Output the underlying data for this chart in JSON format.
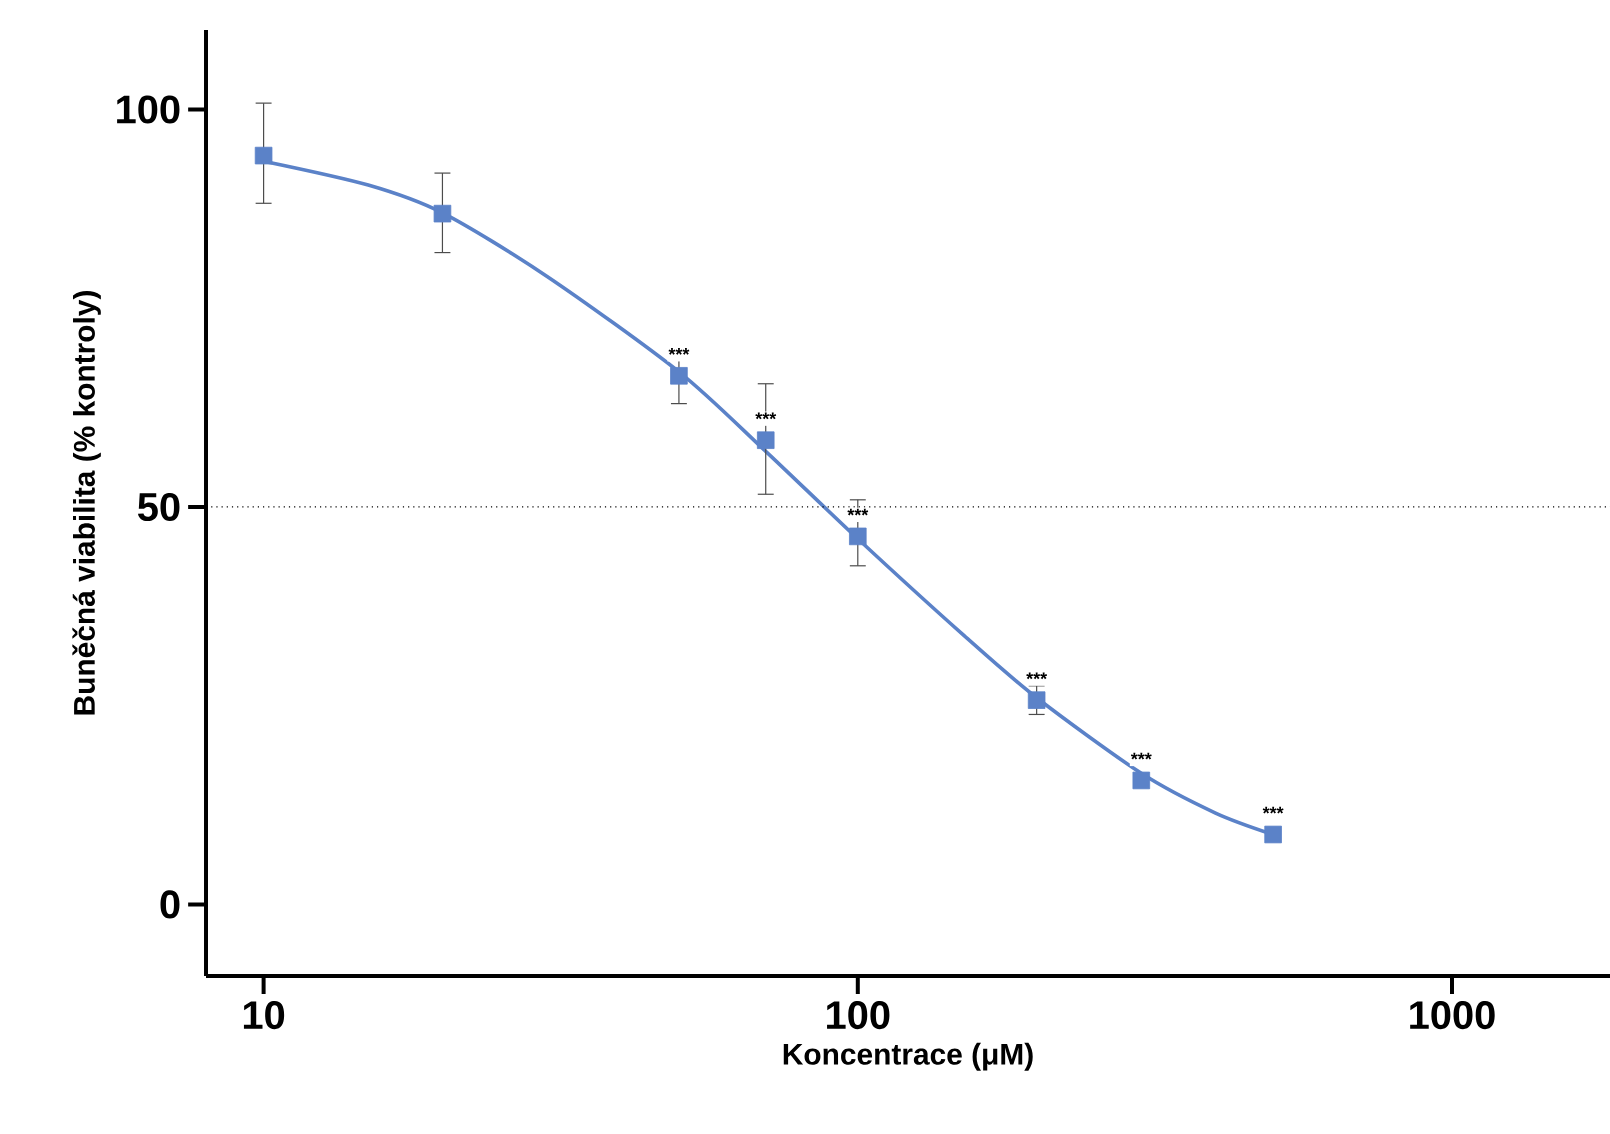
{
  "chart_data": {
    "type": "scatter",
    "xlabel": "Koncentrace (μM)",
    "ylabel": "Buněčná viabilita  (% kontroly)",
    "log": "x",
    "xlim": [
      8,
      1845
    ],
    "xticks": [
      10,
      100,
      1000
    ],
    "ylim": [
      -9,
      110
    ],
    "yticks": [
      0,
      50,
      100
    ],
    "marker": "square",
    "line_style": "solid",
    "grid": false,
    "series": [
      {
        "type": "line",
        "marker": "none",
        "color": "#5b82c8",
        "x": [
          10,
          15,
          20,
          30,
          50,
          70,
          100,
          150,
          200,
          300,
          400,
          500
        ],
        "values": [
          93.5,
          90.5,
          87,
          79,
          67,
          57,
          46,
          34,
          26,
          16.5,
          11.5,
          8.8
        ]
      },
      {
        "color": "#5b82c8",
        "x": [
          10,
          20,
          50,
          70,
          100,
          200,
          300,
          500
        ],
        "values": [
          94.2,
          86.9,
          66.5,
          58.4,
          46.3,
          25.7,
          15.6,
          8.8
        ],
        "errors": [
          [
            88.2,
            100.8
          ],
          [
            82,
            92
          ],
          [
            63,
            69.5
          ],
          [
            51.6,
            65.5
          ],
          [
            42.6,
            50.9
          ],
          [
            23.9,
            27.5
          ],
          null,
          null
        ]
      }
    ],
    "ref_lines": [
      {
        "axis": "y",
        "value": 50,
        "line_style": "dotted",
        "color": "#000000"
      }
    ],
    "annotations": [
      {
        "text": "***",
        "x": 50,
        "y": 66.5
      },
      {
        "text": "***",
        "x": 70,
        "y": 58.4
      },
      {
        "text": "***",
        "x": 100,
        "y": 46.3
      },
      {
        "text": "***",
        "x": 200,
        "y": 25.7
      },
      {
        "text": "***",
        "x": 300,
        "y": 15.6
      },
      {
        "text": "***",
        "x": 500,
        "y": 8.8
      }
    ]
  }
}
